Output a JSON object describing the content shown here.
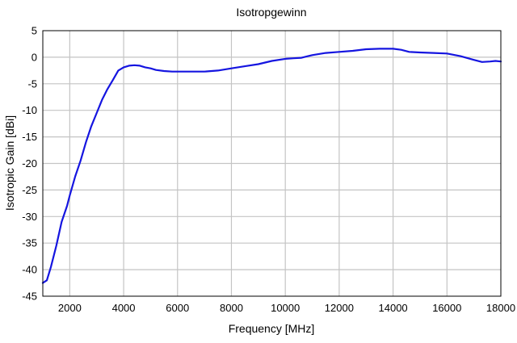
{
  "chart_data": {
    "type": "line",
    "title": "Isotropgewinn",
    "xlabel": "Frequency [MHz]",
    "ylabel": "Isotropic Gain [dBi]",
    "xlim": [
      1000,
      18000
    ],
    "ylim": [
      -45,
      5
    ],
    "xticks": [
      2000,
      4000,
      6000,
      8000,
      10000,
      12000,
      14000,
      16000,
      18000
    ],
    "yticks": [
      5,
      0,
      -5,
      -10,
      -15,
      -20,
      -25,
      -30,
      -35,
      -40,
      -45
    ],
    "grid": true,
    "legend": "none",
    "series": [
      {
        "color": "#1515e0",
        "x": [
          1000,
          1150,
          1300,
          1500,
          1700,
          1900,
          2000,
          2200,
          2400,
          2600,
          2800,
          3000,
          3200,
          3400,
          3600,
          3800,
          4000,
          4200,
          4400,
          4600,
          4800,
          5000,
          5200,
          5500,
          5800,
          6000,
          6500,
          7000,
          7500,
          8000,
          8500,
          9000,
          9500,
          10000,
          10300,
          10600,
          11000,
          11500,
          12000,
          12500,
          13000,
          13500,
          14000,
          14300,
          14600,
          15000,
          15500,
          16000,
          16500,
          17000,
          17300,
          17600,
          17800,
          18000
        ],
        "y": [
          -42.5,
          -42,
          -39.5,
          -35.5,
          -31,
          -28,
          -26,
          -22.5,
          -19.5,
          -16,
          -13,
          -10.5,
          -8,
          -6,
          -4.3,
          -2.5,
          -1.9,
          -1.6,
          -1.5,
          -1.6,
          -1.9,
          -2.1,
          -2.4,
          -2.6,
          -2.7,
          -2.7,
          -2.7,
          -2.7,
          -2.5,
          -2.1,
          -1.7,
          -1.3,
          -0.7,
          -0.3,
          -0.2,
          -0.1,
          0.4,
          0.8,
          1,
          1.2,
          1.5,
          1.6,
          1.6,
          1.4,
          1.0,
          0.9,
          0.8,
          0.7,
          0.2,
          -0.5,
          -0.9,
          -0.8,
          -0.7,
          -0.8
        ]
      }
    ]
  }
}
